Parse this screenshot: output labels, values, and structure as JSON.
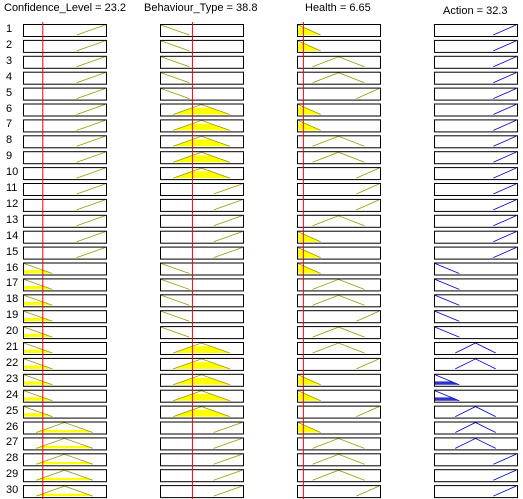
{
  "headers": [
    {
      "label": "Confidence_Level = 23.2"
    },
    {
      "label": "Behaviour_Type = 38.8"
    },
    {
      "label": "Health = 6.65"
    },
    {
      "label": "Action = 32.3"
    }
  ],
  "inputs": [
    {
      "name": "Confidence_Level",
      "value": 23.2,
      "range": [
        0,
        100
      ]
    },
    {
      "name": "Behaviour_Type",
      "value": 38.8,
      "range": [
        0,
        100
      ]
    },
    {
      "name": "Health",
      "value": 6.65,
      "range": [
        0,
        100
      ]
    }
  ],
  "output": {
    "name": "Action",
    "value": 32.3
  },
  "colors": {
    "input_mf": "#999900",
    "fill": "#ffff00",
    "output_mf": "#0000cc",
    "output_fill": "#3333cc",
    "line": "#ff0000",
    "box": "#000000"
  },
  "rules": [
    {
      "n": "1",
      "c": "H",
      "b": "L",
      "h": "L",
      "a": "H"
    },
    {
      "n": "2",
      "c": "H",
      "b": "L",
      "h": "L",
      "a": "H"
    },
    {
      "n": "3",
      "c": "H",
      "b": "L",
      "h": "M",
      "a": "H"
    },
    {
      "n": "4",
      "c": "H",
      "b": "L",
      "h": "M",
      "a": "H"
    },
    {
      "n": "5",
      "c": "H",
      "b": "L",
      "h": "H",
      "a": "H"
    },
    {
      "n": "6",
      "c": "H",
      "b": "M",
      "h": "L",
      "a": "H"
    },
    {
      "n": "7",
      "c": "H",
      "b": "M",
      "h": "L",
      "a": "H"
    },
    {
      "n": "8",
      "c": "H",
      "b": "M",
      "h": "M",
      "a": "H"
    },
    {
      "n": "9",
      "c": "H",
      "b": "M",
      "h": "M",
      "a": "H"
    },
    {
      "n": "10",
      "c": "H",
      "b": "M",
      "h": "H",
      "a": "H"
    },
    {
      "n": "11",
      "c": "H",
      "b": "H",
      "h": "H",
      "a": "H"
    },
    {
      "n": "12",
      "c": "H",
      "b": "H",
      "h": "H",
      "a": "H"
    },
    {
      "n": "13",
      "c": "H",
      "b": "H",
      "h": "M",
      "a": "H"
    },
    {
      "n": "14",
      "c": "H",
      "b": "H",
      "h": "L",
      "a": "H"
    },
    {
      "n": "15",
      "c": "H",
      "b": "H",
      "h": "L",
      "a": "H"
    },
    {
      "n": "16",
      "c": "L",
      "b": "L",
      "h": "L",
      "a": "L"
    },
    {
      "n": "17",
      "c": "L",
      "b": "L",
      "h": "M",
      "a": "L"
    },
    {
      "n": "18",
      "c": "L",
      "b": "L",
      "h": "M",
      "a": "L"
    },
    {
      "n": "19",
      "c": "L",
      "b": "L",
      "h": "H",
      "a": "L"
    },
    {
      "n": "20",
      "c": "L",
      "b": "L",
      "h": "M",
      "a": "L"
    },
    {
      "n": "21",
      "c": "L",
      "b": "M",
      "h": "M",
      "a": "M"
    },
    {
      "n": "22",
      "c": "L",
      "b": "M",
      "h": "H",
      "a": "M"
    },
    {
      "n": "23",
      "c": "L",
      "b": "M",
      "h": "L",
      "a": "L"
    },
    {
      "n": "24",
      "c": "L",
      "b": "M",
      "h": "L",
      "a": "L"
    },
    {
      "n": "25",
      "c": "L",
      "b": "M",
      "h": "H",
      "a": "M"
    },
    {
      "n": "26",
      "c": "M",
      "b": "H",
      "h": "L",
      "a": "M"
    },
    {
      "n": "27",
      "c": "M",
      "b": "H",
      "h": "M",
      "a": "M"
    },
    {
      "n": "28",
      "c": "M",
      "b": "H",
      "h": "M",
      "a": "H"
    },
    {
      "n": "29",
      "c": "M",
      "b": "H",
      "h": "M",
      "a": "H"
    },
    {
      "n": "30",
      "c": "M",
      "b": "H",
      "h": "H",
      "a": "H"
    }
  ]
}
